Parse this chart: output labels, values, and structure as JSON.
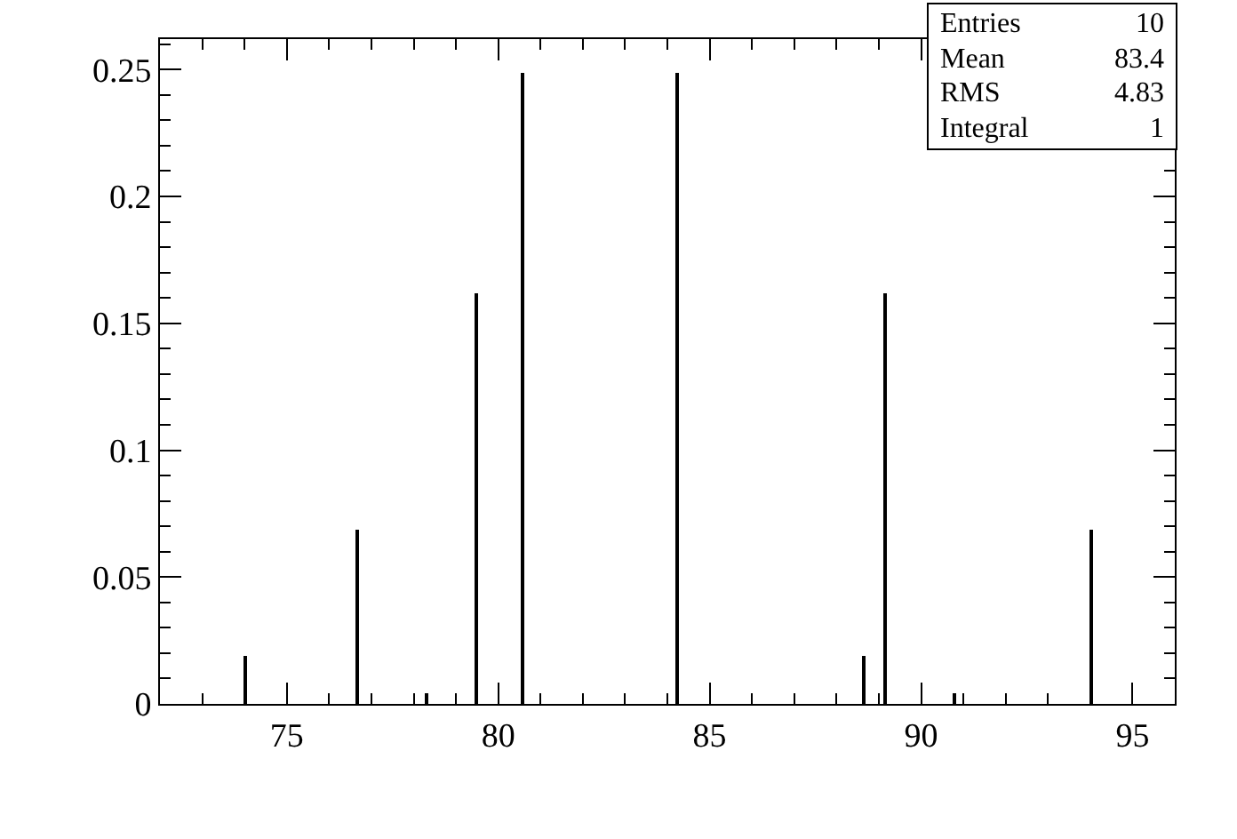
{
  "chart_data": {
    "type": "histogram",
    "color": "#000000",
    "bins": [
      73.985,
      74.075,
      76.615,
      76.705,
      78.255,
      78.345,
      79.445,
      79.495,
      80.545,
      80.595,
      84.215,
      84.265,
      88.615,
      88.665,
      89.145,
      89.195,
      90.725,
      90.815,
      94.005,
      94.055
    ],
    "values": [
      0.019,
      0,
      0.069,
      0,
      0.004,
      0,
      0.162,
      0,
      0.249,
      0,
      0.249,
      0,
      0.019,
      0,
      0.162,
      0,
      0.004,
      0,
      0.069
    ],
    "xlim": [
      72,
      96
    ],
    "ylim": [
      0,
      0.262
    ],
    "xticks": [
      {
        "value": 73,
        "label": null
      },
      {
        "value": 74,
        "label": null
      },
      75,
      {
        "value": 76,
        "label": null
      },
      {
        "value": 77,
        "label": null
      },
      {
        "value": 78,
        "label": null
      },
      {
        "value": 79,
        "label": null
      },
      80,
      {
        "value": 81,
        "label": null
      },
      {
        "value": 82,
        "label": null
      },
      {
        "value": 83,
        "label": null
      },
      {
        "value": 84,
        "label": null
      },
      85,
      {
        "value": 86,
        "label": null
      },
      {
        "value": 87,
        "label": null
      },
      {
        "value": 88,
        "label": null
      },
      {
        "value": 89,
        "label": null
      },
      90,
      {
        "value": 91,
        "label": null
      },
      {
        "value": 92,
        "label": null
      },
      {
        "value": 93,
        "label": null
      },
      {
        "value": 94,
        "label": null
      },
      95
    ],
    "yticks": [
      0,
      {
        "value": 0.01,
        "label": null
      },
      {
        "value": 0.02,
        "label": null
      },
      {
        "value": 0.03,
        "label": null
      },
      {
        "value": 0.04,
        "label": null
      },
      0.05,
      {
        "value": 0.06,
        "label": null
      },
      {
        "value": 0.07,
        "label": null
      },
      {
        "value": 0.08,
        "label": null
      },
      {
        "value": 0.09,
        "label": null
      },
      0.1,
      {
        "value": 0.11,
        "label": null
      },
      {
        "value": 0.12,
        "label": null
      },
      {
        "value": 0.13,
        "label": null
      },
      {
        "value": 0.14,
        "label": null
      },
      0.15,
      {
        "value": 0.16,
        "label": null
      },
      {
        "value": 0.17,
        "label": null
      },
      {
        "value": 0.18,
        "label": null
      },
      {
        "value": 0.19,
        "label": null
      },
      0.2,
      {
        "value": 0.21,
        "label": null
      },
      {
        "value": 0.22,
        "label": null
      },
      {
        "value": 0.23,
        "label": null
      },
      {
        "value": 0.24,
        "label": null
      },
      0.25,
      {
        "value": 0.26,
        "label": null
      }
    ],
    "annotations": [
      "Entries",
      "10",
      "Mean",
      "83.4",
      "RMS",
      "4.83",
      "Integral",
      "1"
    ]
  }
}
